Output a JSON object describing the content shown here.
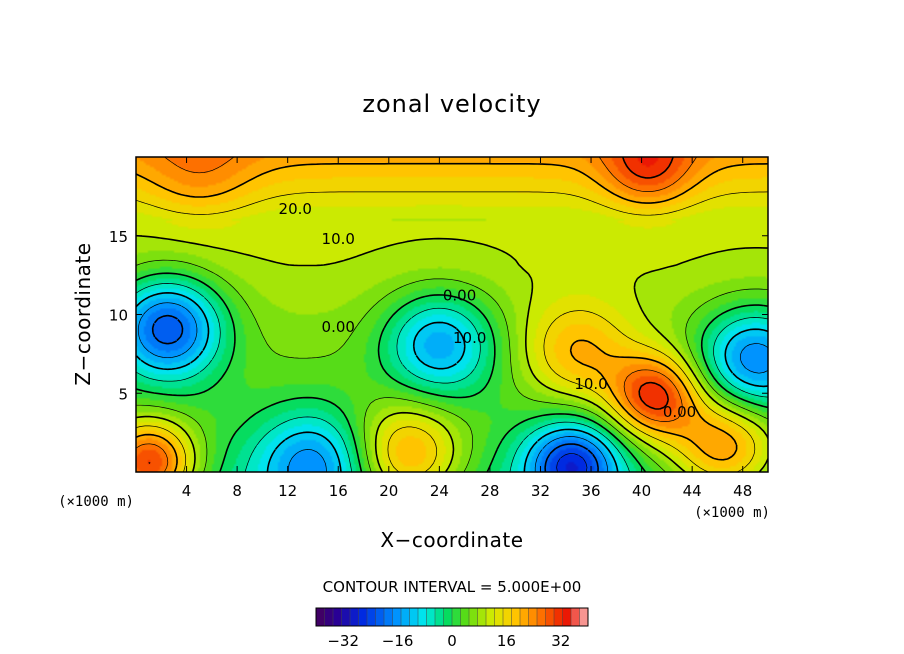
{
  "chart_data": {
    "type": "heatmap",
    "title": "zonal velocity",
    "xlabel": "X−coordinate",
    "ylabel": "Z−coordinate",
    "x_unit_left": "(×1000 m)",
    "x_unit_right": "(×1000 m)",
    "xlim": [
      0,
      50
    ],
    "ylim": [
      0,
      20
    ],
    "x_ticks": [
      4,
      8,
      12,
      16,
      20,
      24,
      28,
      32,
      36,
      40,
      44,
      48
    ],
    "y_ticks": [
      5,
      10,
      15
    ],
    "contour_interval_text": "CONTOUR INTERVAL = 5.000E+00",
    "contour_interval": 5.0,
    "colorbar": {
      "range": [
        -40,
        40
      ],
      "ticks": [
        -32,
        -16,
        0,
        16,
        32
      ]
    },
    "contour_labels": [
      {
        "text": "20.0",
        "x": 12.6,
        "y": 16.7
      },
      {
        "text": "10.0",
        "x": 16.0,
        "y": 14.8
      },
      {
        "text": "0.00",
        "x": 25.6,
        "y": 11.2
      },
      {
        "text": "10.0",
        "x": 26.4,
        "y": 8.5
      },
      {
        "text": "0.00",
        "x": 16.0,
        "y": 9.2
      },
      {
        "text": "10.0",
        "x": 36.0,
        "y": 5.6
      },
      {
        "text": "0.00",
        "x": 43.0,
        "y": 3.8
      }
    ],
    "field_extrema": [
      {
        "kind": "max",
        "x": 40.5,
        "y": 19.2,
        "value": 32
      },
      {
        "kind": "max",
        "x": 5.0,
        "y": 18.6,
        "value": 24
      },
      {
        "kind": "min",
        "x": 2.5,
        "y": 9.2,
        "value": -22
      },
      {
        "kind": "min",
        "x": 24.0,
        "y": 8.2,
        "value": -14
      },
      {
        "kind": "min",
        "x": 49.0,
        "y": 7.2,
        "value": -18
      },
      {
        "kind": "min",
        "x": 34.5,
        "y": 0.5,
        "value": -28
      },
      {
        "kind": "min",
        "x": 14.0,
        "y": 0.6,
        "value": -18
      },
      {
        "kind": "max",
        "x": 35.0,
        "y": 7.5,
        "value": 20
      },
      {
        "kind": "max",
        "x": 41.0,
        "y": 4.8,
        "value": 30
      },
      {
        "kind": "max",
        "x": 1.0,
        "y": 0.5,
        "value": 30
      },
      {
        "kind": "max",
        "x": 21.5,
        "y": 1.0,
        "value": 20
      },
      {
        "kind": "max",
        "x": 46.5,
        "y": 1.5,
        "value": 22
      }
    ]
  }
}
